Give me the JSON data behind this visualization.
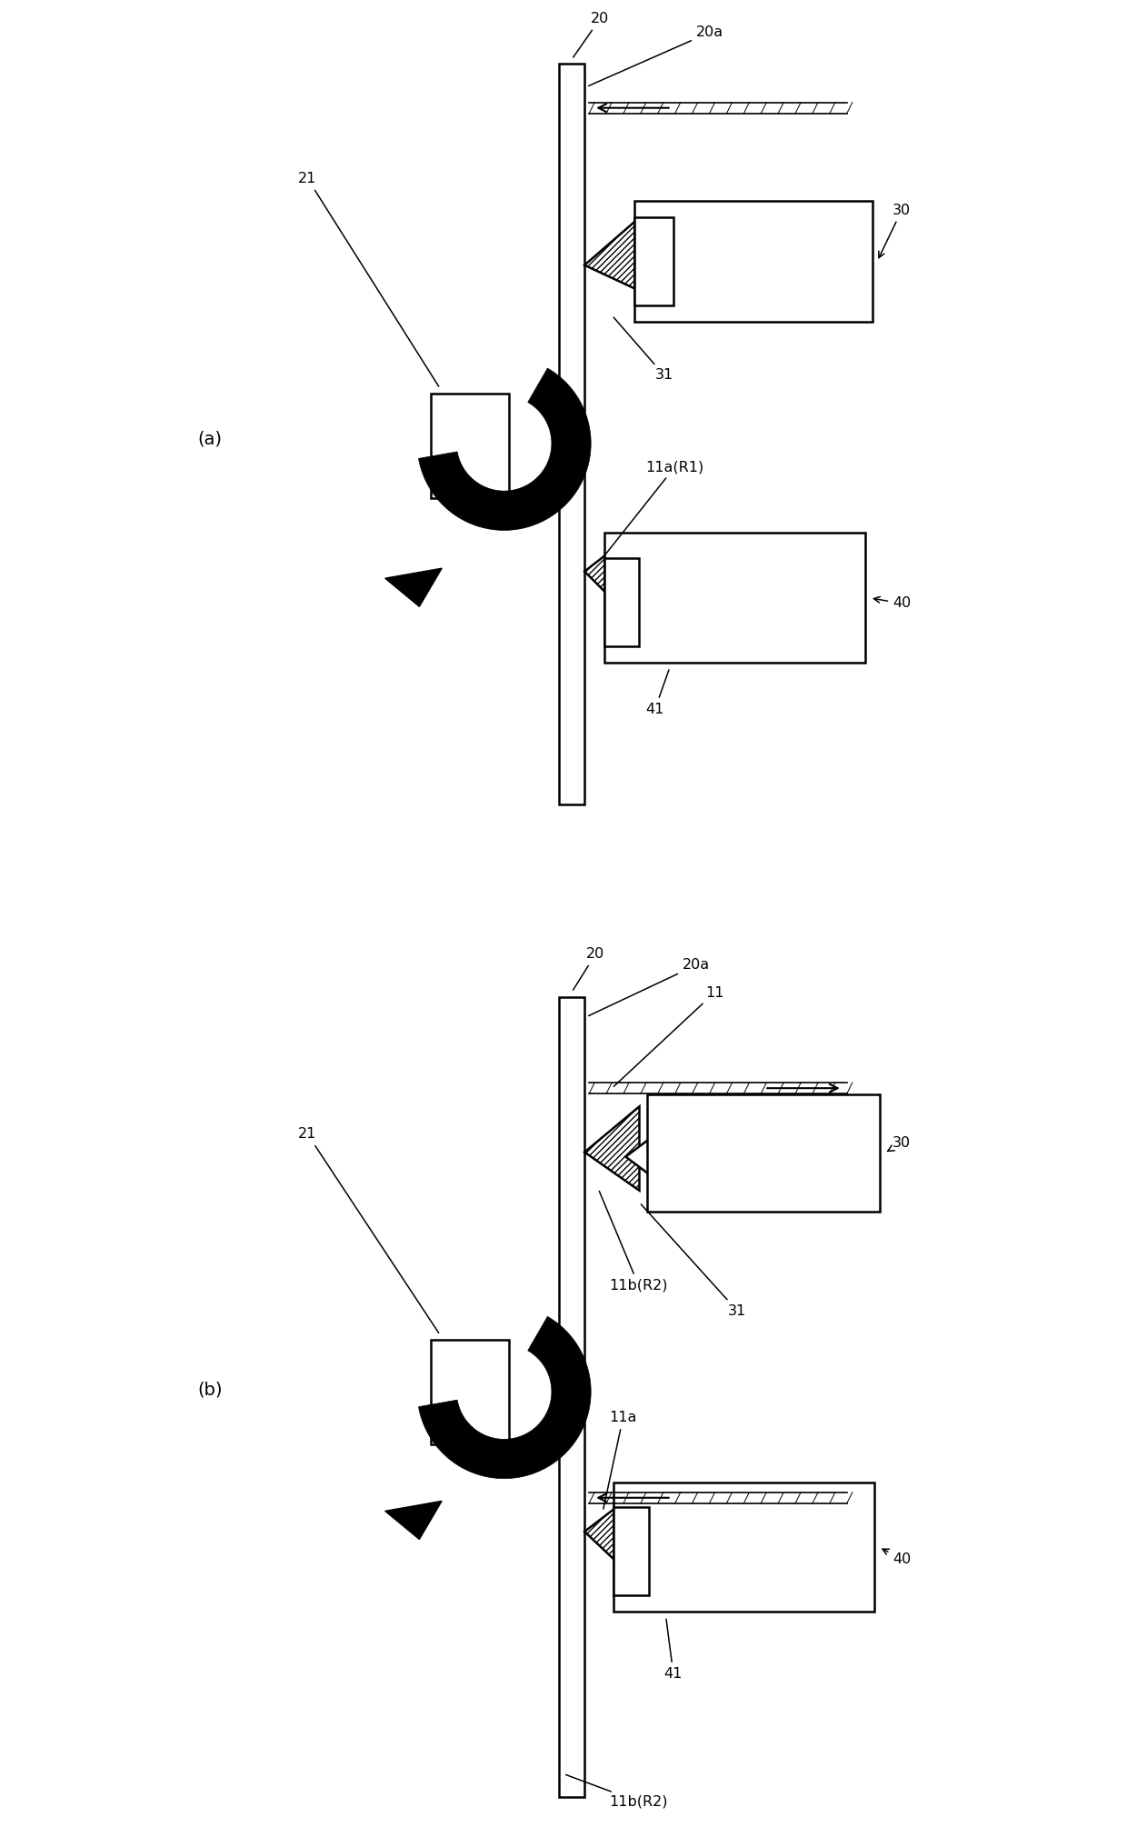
{
  "bg": "#ffffff",
  "lc": "#000000",
  "fig_w": 12.4,
  "fig_h": 20.32,
  "lw": 1.8,
  "labels_a": {
    "n20": "20",
    "n20a": "20a",
    "n21": "21",
    "n30": "30",
    "n31": "31",
    "n11aR1": "11a(R1)",
    "n40": "40",
    "n41": "41",
    "panel": "(a)"
  },
  "labels_b": {
    "n20": "20",
    "n20a": "20a",
    "n11": "11",
    "n21": "21",
    "n30": "30",
    "n11bR2": "11b(R2)",
    "n31": "31",
    "n11a": "11a",
    "n40": "40",
    "n41": "41",
    "n11bR2bot": "11b(R2)",
    "panel": "(b)"
  }
}
